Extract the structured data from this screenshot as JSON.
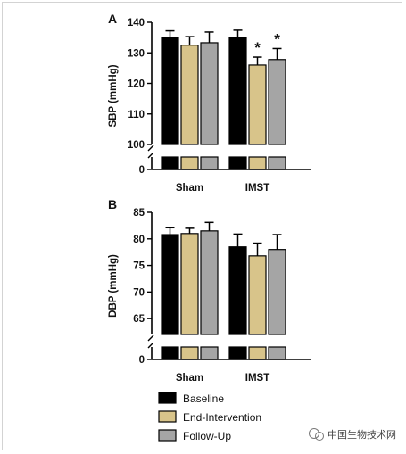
{
  "chart_data": [
    {
      "type": "bar",
      "panel": "A",
      "ylabel": "SBP (mmHg)",
      "categories": [
        "Sham",
        "IMST"
      ],
      "yticks_upper": [
        100,
        110,
        120,
        130,
        140
      ],
      "yticks_lower": [
        0
      ],
      "ylim_upper": [
        100,
        140
      ],
      "ylim_lower": [
        0,
        100
      ],
      "series": [
        {
          "name": "Baseline",
          "values": [
            135,
            135
          ],
          "errors": [
            2.2,
            2.4
          ]
        },
        {
          "name": "End-Intervention",
          "values": [
            132.5,
            126
          ],
          "errors": [
            2.8,
            2.6
          ]
        },
        {
          "name": "Follow-Up",
          "values": [
            133.3,
            127.8
          ],
          "errors": [
            3.5,
            3.6
          ]
        }
      ],
      "significance": [
        {
          "category": "IMST",
          "series": "End-Intervention",
          "mark": "*"
        },
        {
          "category": "IMST",
          "series": "Follow-Up",
          "mark": "*"
        }
      ]
    },
    {
      "type": "bar",
      "panel": "B",
      "ylabel": "DBP (mmHg)",
      "categories": [
        "Sham",
        "IMST"
      ],
      "yticks_upper": [
        65,
        70,
        75,
        80,
        85
      ],
      "yticks_lower": [
        0
      ],
      "ylim_upper": [
        62,
        85
      ],
      "ylim_lower": [
        0,
        62
      ],
      "series": [
        {
          "name": "Baseline",
          "values": [
            80.8,
            78.5
          ],
          "errors": [
            1.3,
            2.4
          ]
        },
        {
          "name": "End-Intervention",
          "values": [
            81,
            76.8
          ],
          "errors": [
            1.0,
            2.4
          ]
        },
        {
          "name": "Follow-Up",
          "values": [
            81.5,
            78
          ],
          "errors": [
            1.6,
            2.8
          ]
        }
      ]
    }
  ],
  "legend": {
    "items": [
      {
        "label": "Baseline",
        "color": "#000000"
      },
      {
        "label": "End-Intervention",
        "color": "#d8c48a"
      },
      {
        "label": "Follow-Up",
        "color": "#a5a5a5"
      }
    ]
  },
  "colors": {
    "Baseline": "#000000",
    "End-Intervention": "#d8c48a",
    "Follow-Up": "#a5a5a5"
  },
  "watermark": {
    "text": "中国生物技术网"
  }
}
